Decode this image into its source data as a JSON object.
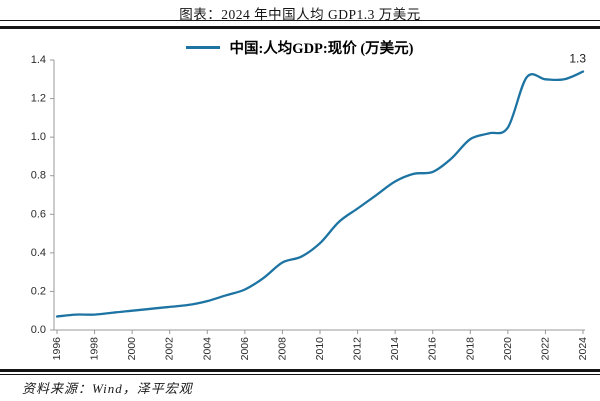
{
  "page": {
    "title": "图表：2024 年中国人均 GDP1.3 万美元",
    "source": "资料来源：Wind，泽平宏观"
  },
  "legend": {
    "label": "中国:人均GDP:现价 (万美元)"
  },
  "colors": {
    "line": "#1d74a3",
    "axis": "#999999",
    "tick_text": "#2b2b2b",
    "annotation_text": "#1a1a1a",
    "rule": "#151515"
  },
  "chart_data": {
    "type": "line",
    "title": "图表：2024 年中国人均 GDP1.3 万美元",
    "xlabel": "",
    "ylabel": "",
    "ylim": [
      0,
      1.4
    ],
    "xlim": [
      1996,
      2024
    ],
    "grid": false,
    "legend_position": "top-center",
    "yticks": [
      0.0,
      0.2,
      0.4,
      0.6,
      0.8,
      1.0,
      1.2,
      1.4
    ],
    "ytick_labels": [
      "0.0",
      "0.2",
      "0.4",
      "0.6",
      "0.8",
      "1.0",
      "1.2",
      "1.4"
    ],
    "xticks": [
      1996,
      1998,
      2000,
      2002,
      2004,
      2006,
      2008,
      2010,
      2012,
      2014,
      2016,
      2018,
      2020,
      2022,
      2024
    ],
    "xtick_labels": [
      "1996",
      "1998",
      "2000",
      "2002",
      "2004",
      "2006",
      "2008",
      "2010",
      "2012",
      "2014",
      "2016",
      "2018",
      "2020",
      "2022",
      "2024"
    ],
    "end_annotation": {
      "text": "1.3",
      "x": 2024,
      "y": 1.34
    },
    "series": [
      {
        "name": "中国:人均GDP:现价 (万美元)",
        "x": [
          1996,
          1997,
          1998,
          1999,
          2000,
          2001,
          2002,
          2003,
          2004,
          2005,
          2006,
          2007,
          2008,
          2009,
          2010,
          2011,
          2012,
          2013,
          2014,
          2015,
          2016,
          2017,
          2018,
          2019,
          2020,
          2021,
          2022,
          2023,
          2024
        ],
        "values": [
          0.07,
          0.08,
          0.08,
          0.09,
          0.1,
          0.11,
          0.12,
          0.13,
          0.15,
          0.18,
          0.21,
          0.27,
          0.35,
          0.38,
          0.45,
          0.56,
          0.63,
          0.7,
          0.77,
          0.81,
          0.82,
          0.89,
          0.99,
          1.02,
          1.05,
          1.31,
          1.3,
          1.3,
          1.34
        ]
      }
    ]
  }
}
